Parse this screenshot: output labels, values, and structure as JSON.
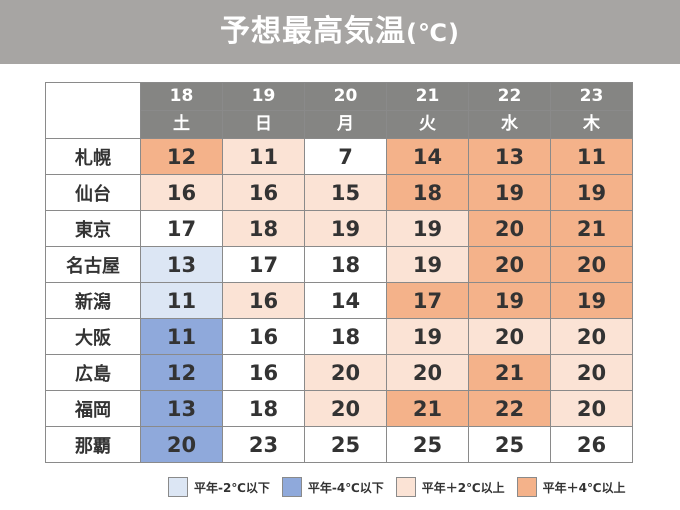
{
  "title": "予想最高気温",
  "title_unit": "(℃)",
  "colors": {
    "header_bg": "#a7a5a3",
    "table_header_bg": "#858583",
    "below_2": "#dce6f4",
    "below_4": "#8fa9db",
    "above_2": "#fbe3d5",
    "above_4": "#f4b28a",
    "normal": "#ffffff"
  },
  "days": [
    {
      "date": "18",
      "weekday": "土"
    },
    {
      "date": "19",
      "weekday": "日"
    },
    {
      "date": "20",
      "weekday": "月"
    },
    {
      "date": "21",
      "weekday": "火"
    },
    {
      "date": "22",
      "weekday": "水"
    },
    {
      "date": "23",
      "weekday": "木"
    }
  ],
  "rows": [
    {
      "city": "札幌",
      "temps": [
        "12",
        "11",
        "7",
        "14",
        "13",
        "11"
      ],
      "levels": [
        "above_4",
        "above_2",
        "normal",
        "above_4",
        "above_4",
        "above_4"
      ]
    },
    {
      "city": "仙台",
      "temps": [
        "16",
        "16",
        "15",
        "18",
        "19",
        "19"
      ],
      "levels": [
        "above_2",
        "above_2",
        "above_2",
        "above_4",
        "above_4",
        "above_4"
      ]
    },
    {
      "city": "東京",
      "temps": [
        "17",
        "18",
        "19",
        "19",
        "20",
        "21"
      ],
      "levels": [
        "normal",
        "above_2",
        "above_2",
        "above_2",
        "above_4",
        "above_4"
      ]
    },
    {
      "city": "名古屋",
      "temps": [
        "13",
        "17",
        "18",
        "19",
        "20",
        "20"
      ],
      "levels": [
        "below_2",
        "normal",
        "normal",
        "above_2",
        "above_4",
        "above_4"
      ]
    },
    {
      "city": "新潟",
      "temps": [
        "11",
        "16",
        "14",
        "17",
        "19",
        "19"
      ],
      "levels": [
        "below_2",
        "above_2",
        "normal",
        "above_4",
        "above_4",
        "above_4"
      ]
    },
    {
      "city": "大阪",
      "temps": [
        "11",
        "16",
        "18",
        "19",
        "20",
        "20"
      ],
      "levels": [
        "below_4",
        "normal",
        "normal",
        "above_2",
        "above_2",
        "above_2"
      ]
    },
    {
      "city": "広島",
      "temps": [
        "12",
        "16",
        "20",
        "20",
        "21",
        "20"
      ],
      "levels": [
        "below_4",
        "normal",
        "above_2",
        "above_2",
        "above_4",
        "above_2"
      ]
    },
    {
      "city": "福岡",
      "temps": [
        "13",
        "18",
        "20",
        "21",
        "22",
        "20"
      ],
      "levels": [
        "below_4",
        "normal",
        "above_2",
        "above_4",
        "above_4",
        "above_2"
      ]
    },
    {
      "city": "那覇",
      "temps": [
        "20",
        "23",
        "25",
        "25",
        "25",
        "26"
      ],
      "levels": [
        "below_4",
        "normal",
        "normal",
        "normal",
        "normal",
        "normal"
      ]
    }
  ],
  "legend": [
    {
      "label": "平年-2℃以下",
      "level": "below_2"
    },
    {
      "label": "平年-4℃以下",
      "level": "below_4"
    },
    {
      "label": "平年＋2℃以上",
      "level": "above_2"
    },
    {
      "label": "平年＋4℃以上",
      "level": "above_4"
    }
  ]
}
